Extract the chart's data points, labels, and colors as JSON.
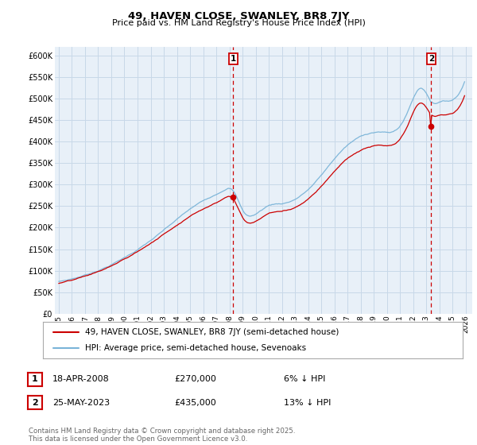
{
  "title": "49, HAVEN CLOSE, SWANLEY, BR8 7JY",
  "subtitle": "Price paid vs. HM Land Registry's House Price Index (HPI)",
  "legend_line1": "49, HAVEN CLOSE, SWANLEY, BR8 7JY (semi-detached house)",
  "legend_line2": "HPI: Average price, semi-detached house, Sevenoaks",
  "annotation1_date": "18-APR-2008",
  "annotation1_price": "£270,000",
  "annotation1_hpi": "6% ↓ HPI",
  "annotation2_date": "25-MAY-2023",
  "annotation2_price": "£435,000",
  "annotation2_hpi": "13% ↓ HPI",
  "footer": "Contains HM Land Registry data © Crown copyright and database right 2025.\nThis data is licensed under the Open Government Licence v3.0.",
  "hpi_color": "#7ab4d8",
  "price_color": "#cc0000",
  "vline_color": "#cc0000",
  "grid_color": "#c8d8e8",
  "background_color": "#e8f0f8",
  "ylim": [
    0,
    620000
  ],
  "yticks": [
    0,
    50000,
    100000,
    150000,
    200000,
    250000,
    300000,
    350000,
    400000,
    450000,
    500000,
    550000,
    600000
  ],
  "t_sale1": 2008.29,
  "t_sale2": 2023.37,
  "price1": 270000,
  "price2": 435000,
  "hpi_premium1": 1.06,
  "hpi_premium2": 1.13
}
